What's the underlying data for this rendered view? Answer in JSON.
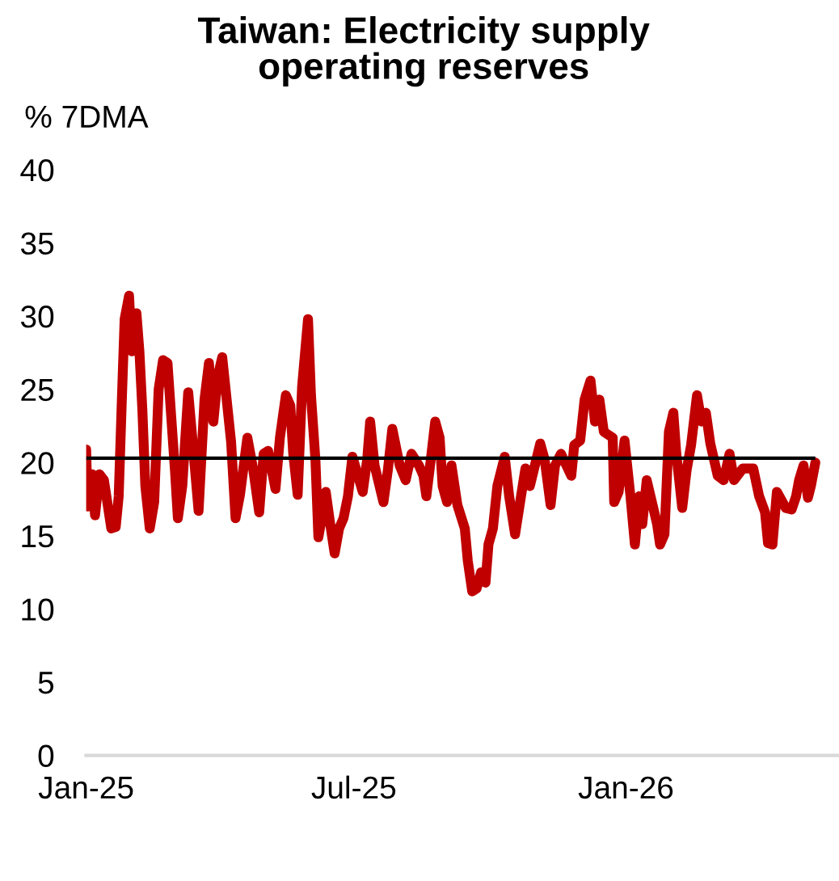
{
  "chart_data": {
    "type": "line",
    "title": "Taiwan: Electricity supply\noperating reserves",
    "ylabel": "% 7DMA",
    "x": [
      "2025-01-01",
      "2025-01-02",
      "2025-01-05",
      "2025-01-07",
      "2025-01-10",
      "2025-01-13",
      "2025-01-18",
      "2025-01-21",
      "2025-01-23",
      "2025-01-25",
      "2025-01-27",
      "2025-01-30",
      "2025-02-01",
      "2025-02-04",
      "2025-02-06",
      "2025-02-08",
      "2025-02-10",
      "2025-02-13",
      "2025-02-16",
      "2025-02-19",
      "2025-02-22",
      "2025-02-25",
      "2025-03-02",
      "2025-03-04",
      "2025-03-07",
      "2025-03-11",
      "2025-03-14",
      "2025-03-18",
      "2025-03-22",
      "2025-03-25",
      "2025-03-28",
      "2025-03-31",
      "2025-04-03",
      "2025-04-06",
      "2025-04-09",
      "2025-04-12",
      "2025-04-15",
      "2025-04-20",
      "2025-04-24",
      "2025-04-28",
      "2025-05-01",
      "2025-05-04",
      "2025-05-09",
      "2025-05-12",
      "2025-05-16",
      "2025-05-19",
      "2025-05-21",
      "2025-05-24",
      "2025-05-27",
      "2025-05-31",
      "2025-06-02",
      "2025-06-05",
      "2025-06-07",
      "2025-06-10",
      "2025-06-12",
      "2025-06-15",
      "2025-06-18",
      "2025-06-21",
      "2025-06-24",
      "2025-06-27",
      "2025-06-30",
      "2025-07-07",
      "2025-07-10",
      "2025-07-12",
      "2025-07-15",
      "2025-07-21",
      "2025-07-24",
      "2025-07-27",
      "2025-08-01",
      "2025-08-05",
      "2025-08-09",
      "2025-08-14",
      "2025-08-17",
      "2025-08-19",
      "2025-08-22",
      "2025-08-25",
      "2025-08-28",
      "2025-08-30",
      "2025-09-02",
      "2025-09-05",
      "2025-09-09",
      "2025-09-14",
      "2025-09-16",
      "2025-09-19",
      "2025-09-22",
      "2025-09-25",
      "2025-09-28",
      "2025-09-30",
      "2025-10-03",
      "2025-10-06",
      "2025-10-11",
      "2025-10-14",
      "2025-10-18",
      "2025-10-22",
      "2025-10-25",
      "2025-10-28",
      "2025-11-04",
      "2025-11-07",
      "2025-11-11",
      "2025-11-14",
      "2025-11-18",
      "2025-11-25",
      "2025-11-27",
      "2025-12-01",
      "2025-12-04",
      "2025-12-08",
      "2025-12-11",
      "2025-12-14",
      "2025-12-17",
      "2025-12-23",
      "2025-12-24",
      "2025-12-27",
      "2025-12-31",
      "2026-01-04",
      "2026-01-07",
      "2026-01-10",
      "2026-01-12",
      "2026-01-15",
      "2026-01-22",
      "2026-01-24",
      "2026-01-27",
      "2026-01-30",
      "2026-02-02",
      "2026-02-04",
      "2026-02-08",
      "2026-02-11",
      "2026-02-14",
      "2026-02-18",
      "2026-02-21",
      "2026-02-24",
      "2026-02-27",
      "2026-03-04",
      "2026-03-08",
      "2026-03-12",
      "2026-03-15",
      "2026-03-21",
      "2026-03-28",
      "2026-04-01",
      "2026-04-05",
      "2026-04-07",
      "2026-04-10",
      "2026-04-13",
      "2026-04-19",
      "2026-04-23",
      "2026-04-26",
      "2026-04-28",
      "2026-05-01",
      "2026-05-04",
      "2026-05-06",
      "2026-05-09"
    ],
    "series": [
      {
        "color": "#c00000",
        "values": [
          20.9,
          17.0,
          19.2,
          16.4,
          19.2,
          18.8,
          15.5,
          15.6,
          17.7,
          23.9,
          29.8,
          31.4,
          27.6,
          30.2,
          27.6,
          23.6,
          18.4,
          15.5,
          17.3,
          25.0,
          27.0,
          26.8,
          19.5,
          16.2,
          18.4,
          24.8,
          21.4,
          16.7,
          24.3,
          26.8,
          22.8,
          25.9,
          27.2,
          24.3,
          21.4,
          16.2,
          17.8,
          21.7,
          19.5,
          16.6,
          20.6,
          20.8,
          18.2,
          21.7,
          24.6,
          23.9,
          20.6,
          17.8,
          25.2,
          29.8,
          24.6,
          20.2,
          14.9,
          16.6,
          18.0,
          15.8,
          13.8,
          15.5,
          16.2,
          17.7,
          20.4,
          18.0,
          20.2,
          22.8,
          19.8,
          17.3,
          19.5,
          22.3,
          19.8,
          18.8,
          20.6,
          19.8,
          19.1,
          17.7,
          20.2,
          22.8,
          21.7,
          18.4,
          17.3,
          19.8,
          17.1,
          15.5,
          13.3,
          11.2,
          11.4,
          12.5,
          11.8,
          14.4,
          15.5,
          18.4,
          20.4,
          17.7,
          15.1,
          17.7,
          19.6,
          18.4,
          21.3,
          20.2,
          17.1,
          19.8,
          20.6,
          19.1,
          21.2,
          21.5,
          24.3,
          25.6,
          22.8,
          24.3,
          22.1,
          21.7,
          17.3,
          18.0,
          21.5,
          17.7,
          14.4,
          17.7,
          15.8,
          18.8,
          15.8,
          14.4,
          15.1,
          22.1,
          23.4,
          20.6,
          16.9,
          19.5,
          21.2,
          24.6,
          22.8,
          23.4,
          21.3,
          19.1,
          18.8,
          20.6,
          18.8,
          19.6,
          19.6,
          17.7,
          16.6,
          14.5,
          14.4,
          18.0,
          16.9,
          16.8,
          17.7,
          18.8,
          19.8,
          17.6,
          18.4,
          20.0
        ]
      }
    ],
    "xlim": [
      "2025-01-01",
      "2026-05-25"
    ],
    "xticks": [
      {
        "value": "2025-01-01",
        "label": "Jan-25"
      },
      {
        "value": "2025-07-01",
        "label": "Jul-25"
      },
      {
        "value": "2026-01-01",
        "label": "Jan-26"
      }
    ],
    "ylim": [
      0,
      40
    ],
    "yticks": [
      0,
      5,
      10,
      15,
      20,
      25,
      30,
      35,
      40
    ],
    "ref_lines": [
      {
        "axis": "y",
        "value": 20.3,
        "color": "#000000"
      }
    ]
  }
}
